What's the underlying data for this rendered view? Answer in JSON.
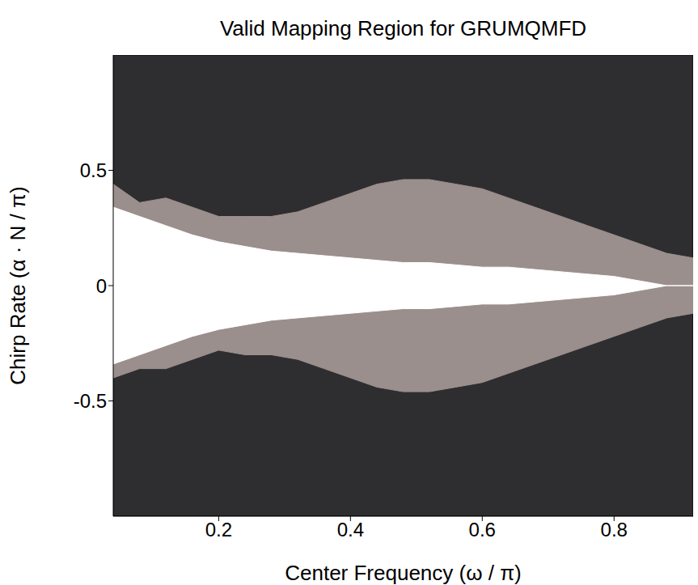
{
  "chart_data": {
    "type": "area",
    "title": "Valid Mapping Region for GRUMQMFD",
    "x_label": "Center Frequency (ω / π)",
    "y_label": "Chirp Rate (α · N / π)",
    "color": "#2e2e30",
    "xlim": [
      0.04,
      0.92
    ],
    "xticks": [
      0.2,
      0.4,
      0.6,
      0.8
    ],
    "ylim": [
      -1,
      1
    ],
    "yticks": [
      -0.5,
      0,
      0.5
    ],
    "x": [
      0.04,
      0.08,
      0.12,
      0.16,
      0.2,
      0.24,
      0.28,
      0.32,
      0.36,
      0.4,
      0.44,
      0.48,
      0.52,
      0.56,
      0.6,
      0.64,
      0.68,
      0.72,
      0.76,
      0.8,
      0.84,
      0.88,
      0.92
    ],
    "regions": [
      {
        "color": "#9a8f8c",
        "upper": [
          0.44,
          0.36,
          0.38,
          0.34,
          0.3,
          0.3,
          0.3,
          0.32,
          0.36,
          0.4,
          0.44,
          0.46,
          0.46,
          0.44,
          0.42,
          0.38,
          0.34,
          0.3,
          0.26,
          0.22,
          0.18,
          0.14,
          0.12
        ],
        "lower": [
          -0.4,
          -0.36,
          -0.36,
          -0.32,
          -0.28,
          -0.3,
          -0.3,
          -0.32,
          -0.36,
          -0.4,
          -0.44,
          -0.46,
          -0.46,
          -0.44,
          -0.42,
          -0.38,
          -0.34,
          -0.3,
          -0.26,
          -0.22,
          -0.18,
          -0.14,
          -0.12
        ]
      },
      {
        "color": "#ffffff",
        "upper": [
          0.34,
          0.3,
          0.26,
          0.22,
          0.19,
          0.17,
          0.15,
          0.14,
          0.13,
          0.12,
          0.11,
          0.1,
          0.1,
          0.09,
          0.08,
          0.08,
          0.07,
          0.06,
          0.05,
          0.04,
          0.02,
          0,
          0
        ],
        "lower": [
          -0.34,
          -0.3,
          -0.26,
          -0.22,
          -0.19,
          -0.17,
          -0.15,
          -0.14,
          -0.13,
          -0.12,
          -0.11,
          -0.1,
          -0.1,
          -0.09,
          -0.08,
          -0.08,
          -0.07,
          -0.06,
          -0.05,
          -0.04,
          -0.02,
          0,
          0
        ]
      }
    ]
  }
}
